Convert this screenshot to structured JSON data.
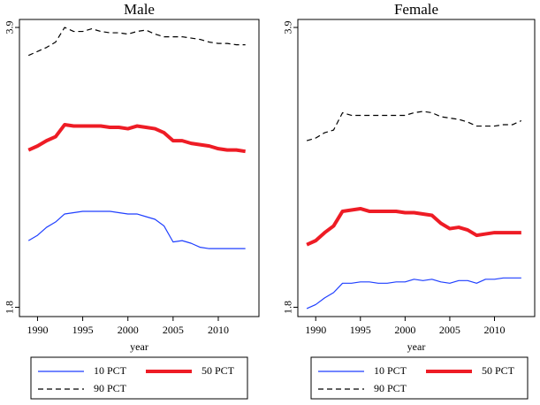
{
  "chart_data": [
    {
      "type": "line",
      "title": "Male",
      "x_label": "year",
      "x": [
        1989,
        1990,
        1991,
        1992,
        1993,
        1994,
        1995,
        1996,
        1997,
        1998,
        1999,
        2000,
        2001,
        2002,
        2003,
        2004,
        2005,
        2006,
        2007,
        2008,
        2009,
        2010,
        2011,
        2012,
        2013
      ],
      "xlim": [
        1988,
        2014.5
      ],
      "xticks": [
        1990,
        1995,
        2000,
        2005,
        2010
      ],
      "ylim": [
        1.73,
        3.96
      ],
      "yticks": [
        1.8,
        3.9
      ],
      "series": [
        {
          "name": "10 PCT",
          "color": "#1f3fff",
          "width": 1.2,
          "dashed": false,
          "values": [
            2.3,
            2.34,
            2.4,
            2.44,
            2.5,
            2.51,
            2.52,
            2.52,
            2.52,
            2.52,
            2.51,
            2.5,
            2.5,
            2.48,
            2.46,
            2.41,
            2.29,
            2.3,
            2.28,
            2.25,
            2.24,
            2.24,
            2.24,
            2.24,
            2.24
          ]
        },
        {
          "name": "50 PCT",
          "color": "#ee1c25",
          "width": 4,
          "dashed": false,
          "values": [
            2.98,
            3.01,
            3.05,
            3.08,
            3.17,
            3.16,
            3.16,
            3.16,
            3.16,
            3.15,
            3.15,
            3.14,
            3.16,
            3.15,
            3.14,
            3.11,
            3.05,
            3.05,
            3.03,
            3.02,
            3.01,
            2.99,
            2.98,
            2.98,
            2.97
          ]
        },
        {
          "name": "90 PCT",
          "color": "#000000",
          "width": 1.2,
          "dashed": true,
          "values": [
            3.69,
            3.72,
            3.75,
            3.79,
            3.9,
            3.87,
            3.87,
            3.89,
            3.87,
            3.86,
            3.86,
            3.85,
            3.87,
            3.88,
            3.85,
            3.83,
            3.83,
            3.83,
            3.82,
            3.81,
            3.79,
            3.78,
            3.78,
            3.77,
            3.77
          ]
        }
      ]
    },
    {
      "type": "line",
      "title": "Female",
      "x_label": "year",
      "x": [
        1989,
        1990,
        1991,
        1992,
        1993,
        1994,
        1995,
        1996,
        1997,
        1998,
        1999,
        2000,
        2001,
        2002,
        2003,
        2004,
        2005,
        2006,
        2007,
        2008,
        2009,
        2010,
        2011,
        2012,
        2013
      ],
      "xlim": [
        1988,
        2014.5
      ],
      "xticks": [
        1990,
        1995,
        2000,
        2005,
        2010
      ],
      "ylim": [
        1.73,
        3.96
      ],
      "yticks": [
        1.8,
        3.9
      ],
      "series": [
        {
          "name": "10 PCT",
          "color": "#1f3fff",
          "width": 1.2,
          "dashed": false,
          "values": [
            1.79,
            1.82,
            1.87,
            1.91,
            1.98,
            1.98,
            1.99,
            1.99,
            1.98,
            1.98,
            1.99,
            1.99,
            2.01,
            2.0,
            2.01,
            1.99,
            1.98,
            2.0,
            2.0,
            1.98,
            2.01,
            2.01,
            2.02,
            2.02,
            2.02
          ]
        },
        {
          "name": "50 PCT",
          "color": "#ee1c25",
          "width": 4,
          "dashed": false,
          "values": [
            2.27,
            2.3,
            2.36,
            2.41,
            2.52,
            2.53,
            2.54,
            2.52,
            2.52,
            2.52,
            2.52,
            2.51,
            2.51,
            2.5,
            2.49,
            2.43,
            2.39,
            2.4,
            2.38,
            2.34,
            2.35,
            2.36,
            2.36,
            2.36,
            2.36
          ]
        },
        {
          "name": "90 PCT",
          "color": "#000000",
          "width": 1.2,
          "dashed": true,
          "values": [
            3.05,
            3.07,
            3.11,
            3.13,
            3.26,
            3.24,
            3.24,
            3.24,
            3.24,
            3.24,
            3.24,
            3.24,
            3.26,
            3.27,
            3.26,
            3.23,
            3.22,
            3.21,
            3.19,
            3.16,
            3.16,
            3.16,
            3.17,
            3.17,
            3.2
          ]
        }
      ]
    }
  ]
}
